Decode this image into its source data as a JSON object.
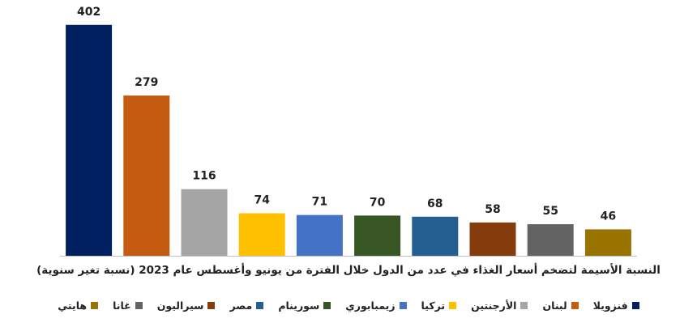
{
  "chart_data": {
    "type": "bar",
    "title": "النسبة الأسيمة لتضخم أسعار الغذاء في عدد من الدول خلال الفترة من يونيو وأغسطس عام 2023 (نسبة تغير سنوية)",
    "categories": [
      "فنزويلا",
      "لبنان",
      "الأرجنتين",
      "تركيا",
      "زيمبابوري",
      "سورينام",
      "مصر",
      "سيراليون",
      "غانا",
      "هايتي"
    ],
    "values": [
      402,
      279,
      116,
      74,
      71,
      70,
      68,
      58,
      55,
      46
    ],
    "colors": [
      "#002060",
      "#C55A11",
      "#A5A5A5",
      "#FFC000",
      "#4472C4",
      "#375623",
      "#255E91",
      "#843C0C",
      "#636363",
      "#997300"
    ],
    "ylim": [
      0,
      420
    ],
    "grid": false,
    "legend_position": "bottom"
  }
}
